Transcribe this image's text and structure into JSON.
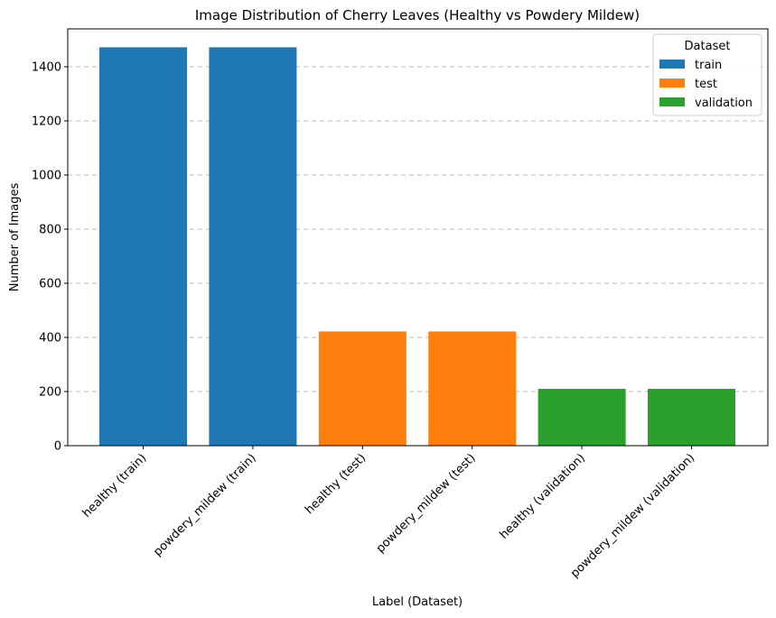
{
  "chart_data": {
    "type": "bar",
    "title": "Image Distribution of Cherry Leaves (Healthy vs Powdery Mildew)",
    "xlabel": "Label (Dataset)",
    "ylabel": "Number of Images",
    "ylim": [
      0,
      1540
    ],
    "yticks": [
      0,
      200,
      400,
      600,
      800,
      1000,
      1200,
      1400
    ],
    "grid": {
      "y": true,
      "style": "dashed"
    },
    "categories": [
      "healthy (train)",
      "powdery_mildew (train)",
      "healthy (test)",
      "powdery_mildew (test)",
      "healthy (validation)",
      "powdery_mildew (validation)"
    ],
    "values": [
      1472,
      1472,
      422,
      422,
      210,
      210
    ],
    "groups": [
      "train",
      "train",
      "test",
      "test",
      "validation",
      "validation"
    ],
    "legend": {
      "title": "Dataset",
      "placement": "top-right",
      "entries": [
        {
          "name": "train",
          "color": "#1f77b4"
        },
        {
          "name": "test",
          "color": "#ff7f0e"
        },
        {
          "name": "validation",
          "color": "#2ca02c"
        }
      ]
    }
  }
}
